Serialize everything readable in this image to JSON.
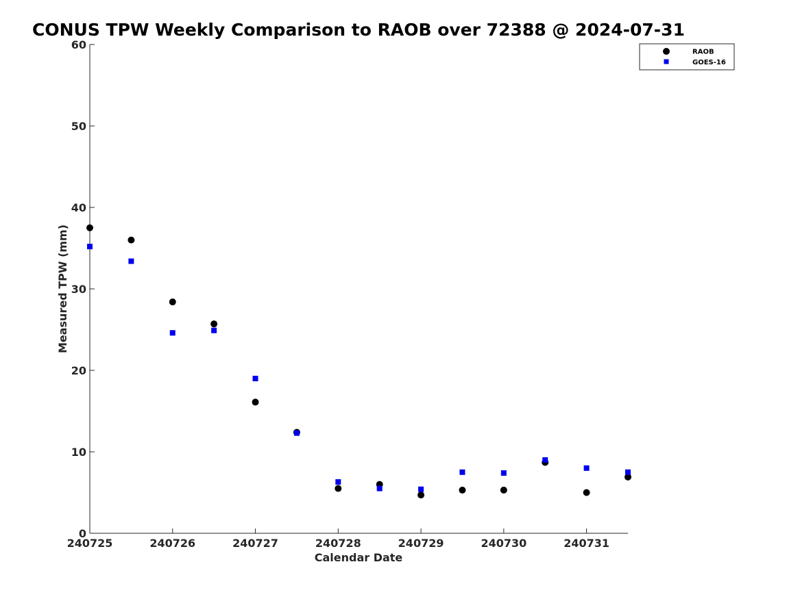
{
  "chart_data": {
    "type": "scatter",
    "title": "CONUS TPW Weekly Comparison to RAOB over 72388 @ 2024-07-31",
    "xlabel": "Calendar Date",
    "ylabel": "Measured TPW (mm)",
    "x_ticks": [
      "240725",
      "240726",
      "240727",
      "240728",
      "240729",
      "240730",
      "240731"
    ],
    "x_tick_values": [
      0,
      1,
      2,
      3,
      4,
      5,
      6
    ],
    "xlim": [
      0,
      6.5
    ],
    "y_ticks": [
      "0",
      "10",
      "20",
      "30",
      "40",
      "50",
      "60"
    ],
    "y_tick_values": [
      0,
      10,
      20,
      30,
      40,
      50,
      60
    ],
    "ylim": [
      0,
      60
    ],
    "grid": false,
    "legend_position": "top-right",
    "series": [
      {
        "name": "RAOB",
        "marker": "circle",
        "color": "#000000",
        "x": [
          0,
          0.5,
          1,
          1.5,
          2,
          2.5,
          3,
          3.5,
          4,
          4.5,
          5,
          5.5,
          6,
          6.5
        ],
        "y": [
          37.5,
          36.0,
          28.4,
          25.7,
          16.1,
          12.4,
          5.5,
          6.0,
          4.7,
          5.3,
          5.3,
          8.7,
          5.0,
          6.9
        ]
      },
      {
        "name": "GOES-16",
        "marker": "square",
        "color": "#0000ee",
        "x": [
          0,
          0.5,
          1,
          1.5,
          2,
          2.5,
          3,
          3.5,
          4,
          4.5,
          5,
          5.5,
          6,
          6.5
        ],
        "y": [
          35.2,
          33.4,
          24.6,
          24.9,
          19.0,
          12.3,
          6.3,
          5.5,
          5.4,
          7.5,
          7.4,
          9.0,
          8.0,
          7.5
        ]
      }
    ]
  }
}
